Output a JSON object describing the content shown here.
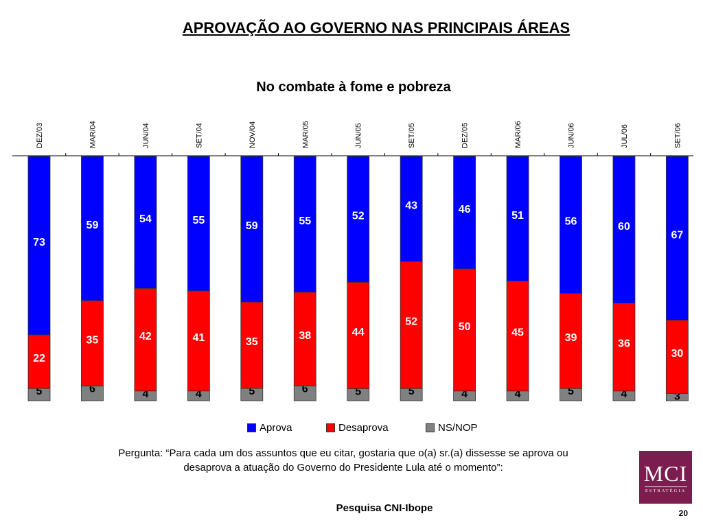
{
  "slide": {
    "title": "APROVAÇÃO AO GOVERNO NAS PRINCIPAIS ÁREAS",
    "question": "Pergunta: “Para cada um dos assuntos que eu citar, gostaria que o(a) sr.(a) dissesse se aprova ou desaprova a atuação do Governo do Presidente Lula até o momento”:",
    "source": "Pesquisa CNI-Ibope",
    "page_number": "20",
    "logo": {
      "main": "MCI",
      "sub": "ESTRATÉGIA"
    }
  },
  "chart_data": {
    "type": "bar",
    "stacked": true,
    "normalized": true,
    "title": "No combate  à fome e pobreza",
    "categories": [
      "DEZ/03",
      "MAR/04",
      "JUN/04",
      "SET/04",
      "NOV/04",
      "MAR/05",
      "JUN/05",
      "SET/05",
      "DEZ/05",
      "MAR/06",
      "JUN/06",
      "JUL/06",
      "SET/06"
    ],
    "series": [
      {
        "name": "NS/NOP",
        "color": "#808080",
        "values": [
          5,
          6,
          4,
          4,
          5,
          6,
          5,
          5,
          4,
          4,
          5,
          4,
          3
        ]
      },
      {
        "name": "Desaprova",
        "color": "#ff0000",
        "values": [
          22,
          35,
          42,
          41,
          35,
          38,
          44,
          52,
          50,
          45,
          39,
          36,
          30
        ]
      },
      {
        "name": "Aprova",
        "color": "#0000ff",
        "values": [
          73,
          59,
          54,
          55,
          59,
          55,
          52,
          43,
          46,
          51,
          56,
          60,
          67
        ]
      }
    ],
    "legend": {
      "position": "bottom",
      "order": [
        "Aprova",
        "Desaprova",
        "NS/NOP"
      ]
    },
    "category_label_position": "top",
    "category_label_orientation": "vertical",
    "ylim": [
      0,
      100
    ],
    "grid": false
  }
}
